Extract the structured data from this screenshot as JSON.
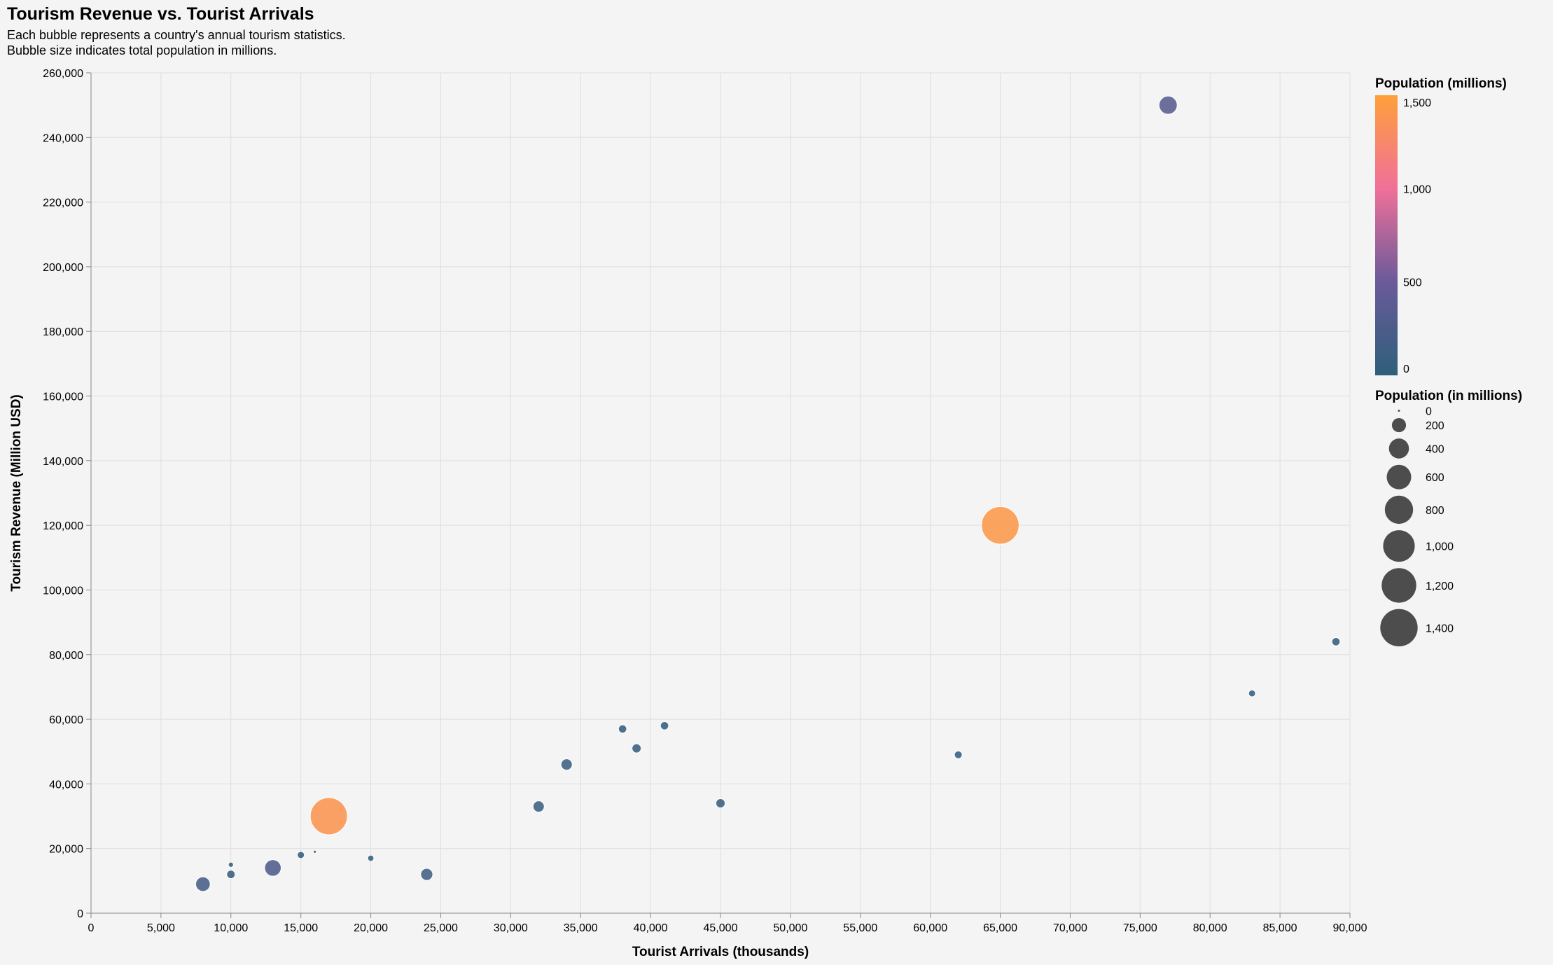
{
  "chart_data": {
    "type": "scatter",
    "title": "Tourism Revenue vs. Tourist Arrivals",
    "subtitle": [
      "Each bubble represents a country's annual tourism statistics.",
      "Bubble size indicates total population in millions."
    ],
    "xlabel": "Tourist Arrivals (thousands)",
    "ylabel": "Tourism Revenue (Million USD)",
    "xlim": [
      0,
      90000
    ],
    "ylim": [
      0,
      260000
    ],
    "x_ticks": [
      0,
      5000,
      10000,
      15000,
      20000,
      25000,
      30000,
      35000,
      40000,
      45000,
      50000,
      55000,
      60000,
      65000,
      70000,
      75000,
      80000,
      85000,
      90000
    ],
    "x_tick_labels": [
      "0",
      "5,000",
      "10,000",
      "15,000",
      "20,000",
      "25,000",
      "30,000",
      "35,000",
      "40,000",
      "45,000",
      "50,000",
      "55,000",
      "60,000",
      "65,000",
      "70,000",
      "75,000",
      "80,000",
      "85,000",
      "90,000"
    ],
    "y_ticks": [
      0,
      20000,
      40000,
      60000,
      80000,
      100000,
      120000,
      140000,
      160000,
      180000,
      200000,
      220000,
      240000,
      260000
    ],
    "y_tick_labels": [
      "0",
      "20,000",
      "40,000",
      "60,000",
      "80,000",
      "100,000",
      "120,000",
      "140,000",
      "160,000",
      "180,000",
      "200,000",
      "220,000",
      "240,000",
      "260,000"
    ],
    "grid": true,
    "points": [
      {
        "x": 89000,
        "y": 84000,
        "population": 67
      },
      {
        "x": 83000,
        "y": 68000,
        "population": 47
      },
      {
        "x": 77000,
        "y": 250000,
        "population": 331
      },
      {
        "x": 65000,
        "y": 120000,
        "population": 1412
      },
      {
        "x": 62000,
        "y": 49000,
        "population": 60
      },
      {
        "x": 45000,
        "y": 34000,
        "population": 84
      },
      {
        "x": 41000,
        "y": 58000,
        "population": 67
      },
      {
        "x": 39000,
        "y": 51000,
        "population": 83
      },
      {
        "x": 38000,
        "y": 57000,
        "population": 67
      },
      {
        "x": 34000,
        "y": 46000,
        "population": 127
      },
      {
        "x": 32000,
        "y": 33000,
        "population": 126
      },
      {
        "x": 24000,
        "y": 12000,
        "population": 146
      },
      {
        "x": 20000,
        "y": 17000,
        "population": 38
      },
      {
        "x": 17000,
        "y": 30000,
        "population": 1380
      },
      {
        "x": 16000,
        "y": 19000,
        "population": 9
      },
      {
        "x": 15000,
        "y": 18000,
        "population": 51
      },
      {
        "x": 13000,
        "y": 14000,
        "population": 273
      },
      {
        "x": 10000,
        "y": 12000,
        "population": 70
      },
      {
        "x": 10000,
        "y": 15000,
        "population": 26
      },
      {
        "x": 8000,
        "y": 9000,
        "population": 212
      }
    ],
    "color_legend": {
      "title": "Population (millions)",
      "domain": [
        0,
        1500
      ],
      "ticks": [
        0,
        500,
        1000,
        1500
      ],
      "tick_labels": [
        "0",
        "500",
        "1,000",
        "1,500"
      ],
      "colors": [
        "#2e5f7a",
        "#6a5a9a",
        "#f0709a",
        "#ffa03a"
      ]
    },
    "size_legend": {
      "title": "Population (in millions)",
      "values": [
        0,
        200,
        400,
        600,
        800,
        1000,
        1200,
        1400
      ],
      "labels": [
        "0",
        "200",
        "400",
        "600",
        "800",
        "1,000",
        "1,200",
        "1,400"
      ]
    },
    "colors": {
      "background": "#f4f4f4",
      "grid": "#dedede",
      "axis": "#888888",
      "size_legend_symbol": "#4d4d4d",
      "bubble_stroke": "#ffffff"
    }
  }
}
